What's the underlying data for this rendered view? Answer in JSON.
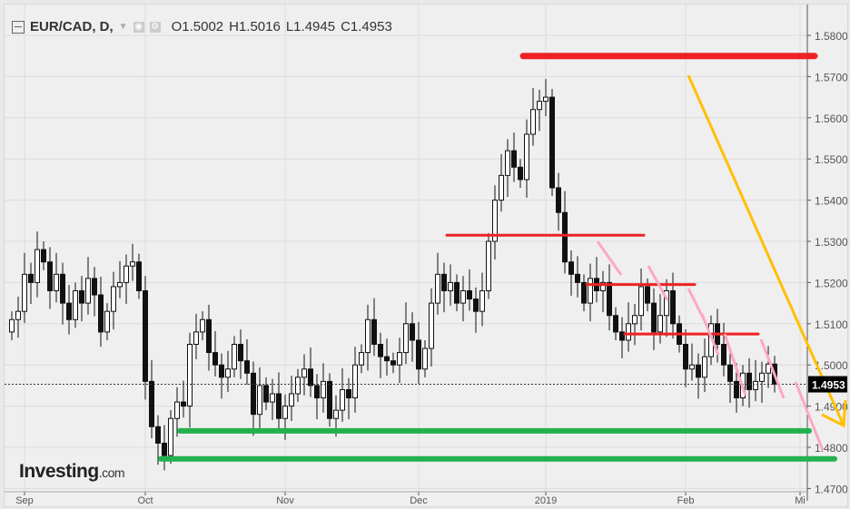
{
  "header": {
    "symbol": "EUR/CAD, D,",
    "open": "O1.5002",
    "high": "H1.5016",
    "low": "L1.4945",
    "close": "C1.4953"
  },
  "logo": {
    "brand": "Investing",
    "suffix": ".com"
  },
  "colors": {
    "bg": "#efefef",
    "grid": "#dcdcdc",
    "candle": "#111111",
    "resistance": "#ee2222",
    "support": "#22b14c",
    "trend": "#ffc000",
    "pink": "#ffa8c0"
  },
  "chart_data": {
    "type": "candlestick",
    "title": "EUR/CAD, D,",
    "ylim": [
      1.47,
      1.585
    ],
    "y_ticks": [
      "1.5800",
      "1.5700",
      "1.5600",
      "1.5500",
      "1.5400",
      "1.5300",
      "1.5200",
      "1.5100",
      "1.5000",
      "1.4900",
      "1.4800",
      "1.4700"
    ],
    "x_ticks": [
      {
        "label": "Sep",
        "index": 2
      },
      {
        "label": "Oct",
        "index": 21
      },
      {
        "label": "Nov",
        "index": 43
      },
      {
        "label": "Dec",
        "index": 64
      },
      {
        "label": "2019",
        "index": 84
      },
      {
        "label": "Feb",
        "index": 106
      },
      {
        "label": "Mi",
        "index": 124
      }
    ],
    "first_open": 1.508,
    "closes": [
      1.511,
      1.513,
      1.522,
      1.52,
      1.528,
      1.525,
      1.518,
      1.522,
      1.515,
      1.511,
      1.518,
      1.515,
      1.521,
      1.517,
      1.508,
      1.513,
      1.519,
      1.52,
      1.524,
      1.525,
      1.518,
      1.496,
      1.485,
      1.481,
      1.478,
      1.487,
      1.491,
      1.49,
      1.505,
      1.508,
      1.511,
      1.503,
      1.5,
      1.497,
      1.499,
      1.505,
      1.501,
      1.498,
      1.488,
      1.495,
      1.491,
      1.493,
      1.487,
      1.49,
      1.493,
      1.497,
      1.499,
      1.495,
      1.492,
      1.496,
      1.487,
      1.489,
      1.494,
      1.492,
      1.5,
      1.503,
      1.511,
      1.505,
      1.502,
      1.501,
      1.5,
      1.503,
      1.51,
      1.506,
      1.499,
      1.504,
      1.515,
      1.522,
      1.518,
      1.52,
      1.515,
      1.518,
      1.516,
      1.513,
      1.518,
      1.53,
      1.54,
      1.546,
      1.552,
      1.548,
      1.545,
      1.556,
      1.562,
      1.564,
      1.565,
      1.543,
      1.537,
      1.525,
      1.522,
      1.52,
      1.515,
      1.521,
      1.518,
      1.52,
      1.512,
      1.508,
      1.506,
      1.51,
      1.512,
      1.519,
      1.515,
      1.508,
      1.512,
      1.518,
      1.51,
      1.505,
      1.499,
      1.5,
      1.497,
      1.502,
      1.51,
      1.505,
      1.5,
      1.496,
      1.492,
      1.498,
      1.494,
      1.496,
      1.498,
      1.5002,
      1.4953
    ],
    "last_price": "1.4953",
    "annotations": {
      "resistance": [
        {
          "price": 1.575,
          "from": 81,
          "to": 127,
          "thick": true
        },
        {
          "price": 1.5315,
          "from": 69,
          "to": 100
        },
        {
          "price": 1.5195,
          "from": 91,
          "to": 108
        },
        {
          "price": 1.5075,
          "from": 97,
          "to": 118
        }
      ],
      "support": [
        {
          "price": 1.484,
          "from": 27,
          "to": 126
        },
        {
          "price": 1.4772,
          "from": 24,
          "to": 130
        }
      ]
    }
  }
}
